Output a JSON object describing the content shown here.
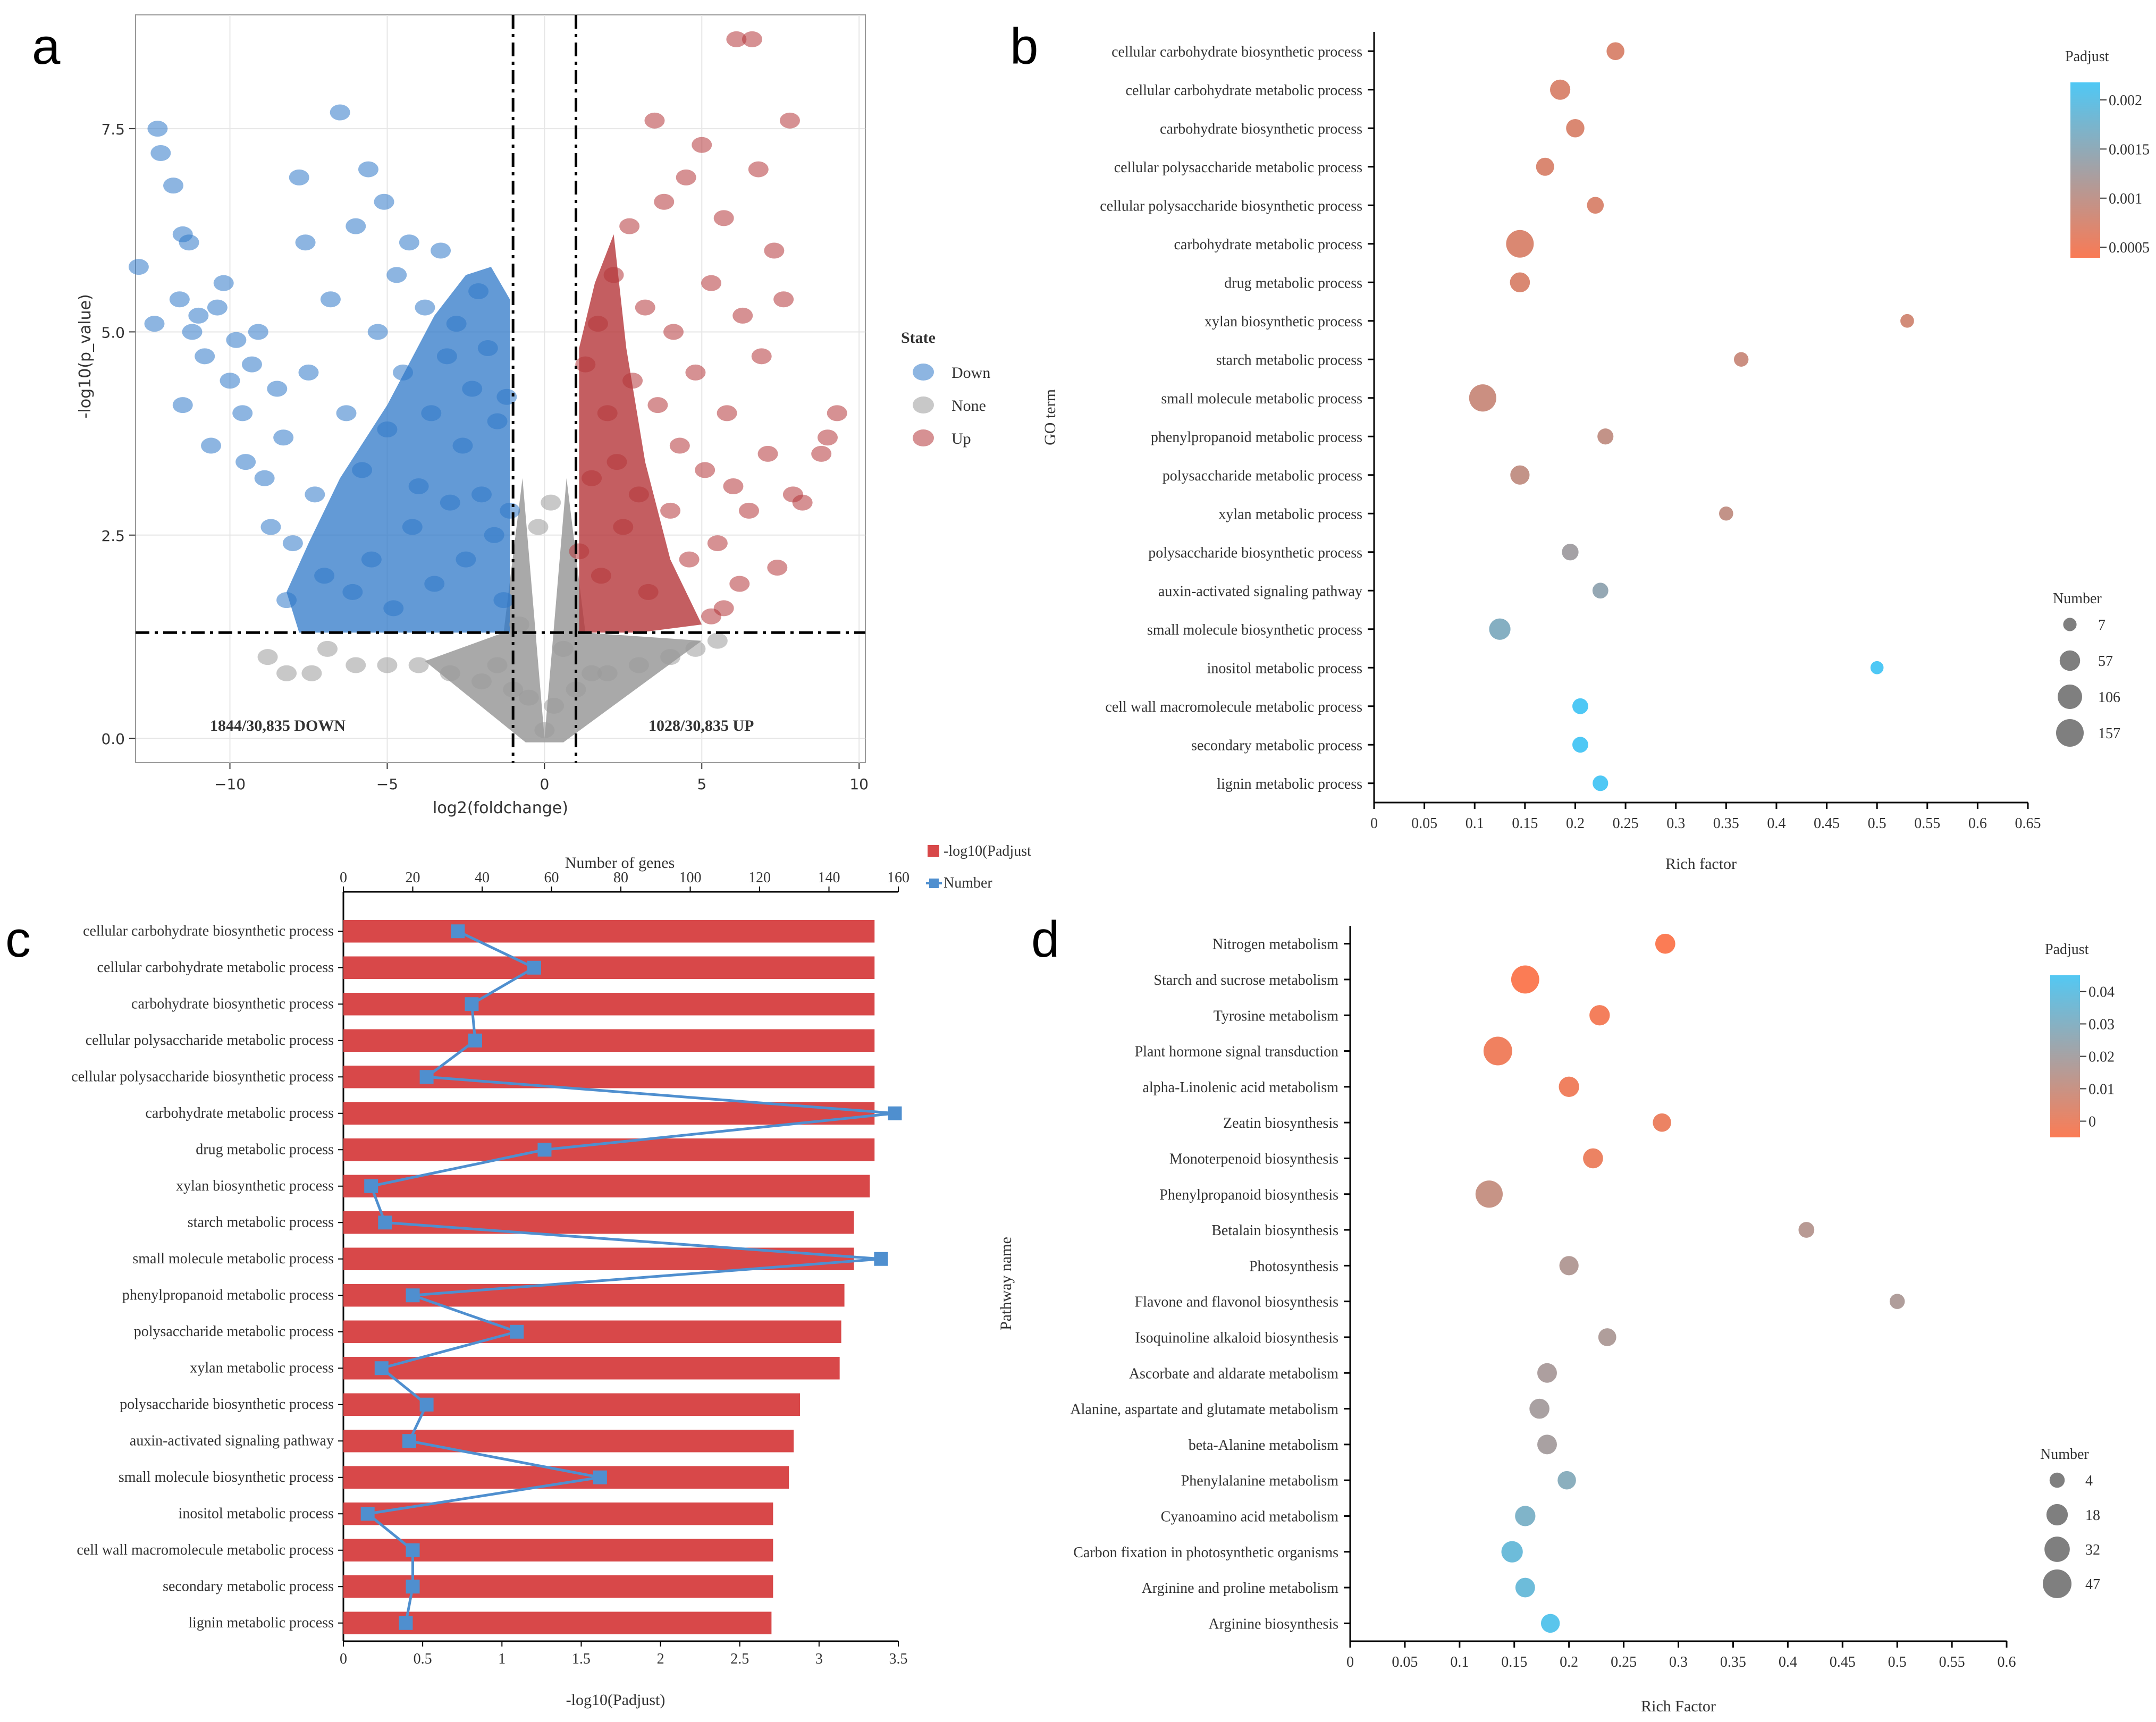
{
  "panels": {
    "a": "a",
    "b": "b",
    "c": "c",
    "d": "d"
  },
  "chart_data": [
    {
      "panel": "a",
      "type": "scatter",
      "xlabel": "log2(foldchange)",
      "ylabel": "-log10(p_value)",
      "xlim": [
        -13,
        10.2
      ],
      "ylim": [
        -0.3,
        8.9
      ],
      "xticks": [
        -10,
        -5,
        0,
        5,
        10
      ],
      "yticks": [
        0.0,
        2.5,
        5.0,
        7.5
      ],
      "xtick_labels": [
        "−10",
        "−5",
        "0",
        "5",
        "10"
      ],
      "ytick_labels": [
        "0.0",
        "2.5",
        "5.0",
        "7.5"
      ],
      "thresholds": {
        "x": [
          -1,
          1
        ],
        "y": 1.3
      },
      "grid": true,
      "legend": {
        "title": "State",
        "position": "right",
        "items": [
          "Down",
          "None",
          "Up"
        ]
      },
      "colors": {
        "Down": "#2f78c8",
        "None": "#9a9a9a",
        "Up": "#b5363a"
      },
      "annotations": {
        "down": "1844/30,835 DOWN",
        "up": "1028/30,835 UP"
      },
      "annotation_colors": {
        "down": "#2f6fc0",
        "up": "#a01f24"
      },
      "series": [
        {
          "name": "Down",
          "points": [
            [
              -12.9,
              5.8
            ],
            [
              -12.4,
              5.1
            ],
            [
              -12.3,
              7.5
            ],
            [
              -12.2,
              7.2
            ],
            [
              -11.8,
              6.8
            ],
            [
              -11.6,
              5.4
            ],
            [
              -11.5,
              6.2
            ],
            [
              -11.3,
              6.1
            ],
            [
              -11.2,
              5.0
            ],
            [
              -11.5,
              4.1
            ],
            [
              -11.0,
              5.2
            ],
            [
              -10.8,
              4.7
            ],
            [
              -10.6,
              3.6
            ],
            [
              -10.4,
              5.3
            ],
            [
              -10.2,
              5.6
            ],
            [
              -10.0,
              4.4
            ],
            [
              -9.8,
              4.9
            ],
            [
              -9.6,
              4.0
            ],
            [
              -9.5,
              3.4
            ],
            [
              -9.3,
              4.6
            ],
            [
              -9.1,
              5.0
            ],
            [
              -8.9,
              3.2
            ],
            [
              -8.7,
              2.6
            ],
            [
              -8.5,
              4.3
            ],
            [
              -8.3,
              3.7
            ],
            [
              -8.2,
              1.7
            ],
            [
              -8.0,
              2.4
            ],
            [
              -7.8,
              6.9
            ],
            [
              -7.6,
              6.1
            ],
            [
              -7.5,
              4.5
            ],
            [
              -7.3,
              3.0
            ],
            [
              -7.0,
              2.0
            ],
            [
              -6.8,
              5.4
            ],
            [
              -6.5,
              7.7
            ],
            [
              -6.3,
              4.0
            ],
            [
              -6.1,
              1.8
            ],
            [
              -6.0,
              6.3
            ],
            [
              -5.8,
              3.3
            ],
            [
              -5.6,
              7.0
            ],
            [
              -5.5,
              2.2
            ],
            [
              -5.3,
              5.0
            ],
            [
              -5.1,
              6.6
            ],
            [
              -5.0,
              3.8
            ],
            [
              -4.8,
              1.6
            ],
            [
              -4.7,
              5.7
            ],
            [
              -4.5,
              4.5
            ],
            [
              -4.3,
              6.1
            ],
            [
              -4.2,
              2.6
            ],
            [
              -4.0,
              3.1
            ],
            [
              -3.8,
              5.3
            ],
            [
              -3.6,
              4.0
            ],
            [
              -3.5,
              1.9
            ],
            [
              -3.3,
              6.0
            ],
            [
              -3.1,
              4.7
            ],
            [
              -3.0,
              2.9
            ],
            [
              -2.8,
              5.1
            ],
            [
              -2.6,
              3.6
            ],
            [
              -2.5,
              2.2
            ],
            [
              -2.3,
              4.3
            ],
            [
              -2.1,
              5.5
            ],
            [
              -2.0,
              3.0
            ],
            [
              -1.8,
              4.8
            ],
            [
              -1.6,
              2.5
            ],
            [
              -1.5,
              3.9
            ],
            [
              -1.3,
              1.7
            ],
            [
              -1.2,
              4.2
            ],
            [
              -1.1,
              2.8
            ]
          ]
        },
        {
          "name": "None",
          "points": [
            [
              -8.8,
              1.0
            ],
            [
              -8.2,
              0.8
            ],
            [
              -7.4,
              0.8
            ],
            [
              -6.9,
              1.1
            ],
            [
              -6.0,
              0.9
            ],
            [
              -5.0,
              0.9
            ],
            [
              -4.0,
              0.9
            ],
            [
              -3.0,
              0.8
            ],
            [
              -2.0,
              0.7
            ],
            [
              -1.5,
              0.9
            ],
            [
              -1.0,
              0.6
            ],
            [
              -0.8,
              1.4
            ],
            [
              -0.5,
              0.5
            ],
            [
              0.0,
              0.1
            ],
            [
              0.3,
              0.4
            ],
            [
              0.6,
              1.1
            ],
            [
              1.0,
              0.6
            ],
            [
              1.5,
              0.8
            ],
            [
              2.0,
              0.8
            ],
            [
              3.0,
              0.9
            ],
            [
              4.0,
              1.0
            ],
            [
              4.8,
              1.1
            ],
            [
              5.5,
              1.2
            ],
            [
              -0.2,
              2.6
            ],
            [
              0.2,
              2.9
            ]
          ]
        },
        {
          "name": "Up",
          "points": [
            [
              1.1,
              2.3
            ],
            [
              1.3,
              4.6
            ],
            [
              1.5,
              3.2
            ],
            [
              1.7,
              5.1
            ],
            [
              1.8,
              2.0
            ],
            [
              2.0,
              4.0
            ],
            [
              2.2,
              5.7
            ],
            [
              2.3,
              3.4
            ],
            [
              2.5,
              2.6
            ],
            [
              2.7,
              6.3
            ],
            [
              2.8,
              4.4
            ],
            [
              3.0,
              3.0
            ],
            [
              3.2,
              5.3
            ],
            [
              3.3,
              1.8
            ],
            [
              3.5,
              7.6
            ],
            [
              3.6,
              4.1
            ],
            [
              3.8,
              6.6
            ],
            [
              4.0,
              2.8
            ],
            [
              4.1,
              5.0
            ],
            [
              4.3,
              3.6
            ],
            [
              4.5,
              6.9
            ],
            [
              4.6,
              2.2
            ],
            [
              4.8,
              4.5
            ],
            [
              5.0,
              7.3
            ],
            [
              5.1,
              3.3
            ],
            [
              5.3,
              5.6
            ],
            [
              5.5,
              2.4
            ],
            [
              5.7,
              6.4
            ],
            [
              5.8,
              4.0
            ],
            [
              6.0,
              3.1
            ],
            [
              6.1,
              8.6
            ],
            [
              6.3,
              5.2
            ],
            [
              6.5,
              2.8
            ],
            [
              6.6,
              8.6
            ],
            [
              6.8,
              7.0
            ],
            [
              6.9,
              4.7
            ],
            [
              7.1,
              3.5
            ],
            [
              7.3,
              6.0
            ],
            [
              7.4,
              2.1
            ],
            [
              7.6,
              5.4
            ],
            [
              7.8,
              7.6
            ],
            [
              7.9,
              3.0
            ],
            [
              8.2,
              2.9
            ],
            [
              8.8,
              3.5
            ],
            [
              9.0,
              3.7
            ],
            [
              9.3,
              4.0
            ],
            [
              5.3,
              1.5
            ],
            [
              5.7,
              1.6
            ],
            [
              6.2,
              1.9
            ]
          ]
        }
      ]
    },
    {
      "panel": "b",
      "type": "scatter",
      "xlabel": "Rich factor",
      "ylabel": "GO term",
      "xlim": [
        0,
        0.65
      ],
      "xticks": [
        0,
        0.05,
        0.1,
        0.15,
        0.2,
        0.25,
        0.3,
        0.35,
        0.4,
        0.45,
        0.5,
        0.55,
        0.6,
        0.65
      ],
      "color_legend": {
        "title": "Padjust",
        "ticks": [
          "0.002",
          "0.0015",
          "0.001",
          "0.0005"
        ],
        "low_color": "#f97a55",
        "high_color": "#4fc8f5",
        "position": "top-right"
      },
      "size_legend": {
        "title": "Number",
        "values": [
          7,
          57,
          106,
          157
        ],
        "position": "right"
      },
      "categories": [
        "cellular carbohydrate biosynthetic process",
        "cellular carbohydrate metabolic process",
        "carbohydrate biosynthetic process",
        "cellular polysaccharide metabolic process",
        "cellular polysaccharide biosynthetic process",
        "carbohydrate metabolic process",
        "drug metabolic process",
        "xylan biosynthetic process",
        "starch metabolic process",
        "small molecule metabolic process",
        "phenylpropanoid metabolic process",
        "polysaccharide metabolic process",
        "xylan metabolic process",
        "polysaccharide biosynthetic process",
        "auxin-activated signaling pathway",
        "small molecule biosynthetic process",
        "inositol metabolic process",
        "cell wall macromolecule metabolic process",
        "secondary metabolic process",
        "lignin metabolic process"
      ],
      "rich_factor": [
        0.24,
        0.185,
        0.2,
        0.17,
        0.22,
        0.145,
        0.145,
        0.53,
        0.365,
        0.108,
        0.23,
        0.145,
        0.35,
        0.195,
        0.225,
        0.125,
        0.5,
        0.205,
        0.205,
        0.225
      ],
      "number": [
        33,
        55,
        37,
        35,
        25,
        157,
        52,
        8,
        12,
        150,
        20,
        45,
        10,
        24,
        19,
        67,
        6,
        19,
        19,
        17
      ],
      "padjust": [
        0.0004,
        0.0004,
        0.0004,
        0.0004,
        0.0004,
        0.0004,
        0.0004,
        0.0005,
        0.0006,
        0.0006,
        0.0007,
        0.0007,
        0.0007,
        0.0011,
        0.0013,
        0.0015,
        0.0022,
        0.0022,
        0.0022,
        0.0022
      ]
    },
    {
      "panel": "c",
      "type": "bar",
      "orientation": "horizontal",
      "xlabel": "-log10(Padjust)",
      "x2label": "Number of genes",
      "xlim": [
        0,
        3.5
      ],
      "xticks": [
        0,
        0.5,
        1,
        1.5,
        2,
        2.5,
        3,
        3.5
      ],
      "x2lim": [
        0,
        160
      ],
      "x2ticks": [
        0,
        20,
        40,
        60,
        80,
        100,
        120,
        140,
        160
      ],
      "legend": {
        "items": [
          "-log10(Padjust",
          "Number"
        ],
        "position": "top-right"
      },
      "colors": {
        "bar": "#d84849",
        "line": "#4f8fcf"
      },
      "categories": [
        "cellular carbohydrate biosynthetic process",
        "cellular carbohydrate metabolic process",
        "carbohydrate biosynthetic process",
        "cellular polysaccharide metabolic process",
        "cellular polysaccharide biosynthetic process",
        "carbohydrate metabolic process",
        "drug metabolic process",
        "xylan biosynthetic process",
        "starch metabolic process",
        "small molecule metabolic process",
        "phenylpropanoid metabolic process",
        "polysaccharide metabolic process",
        "xylan metabolic process",
        "polysaccharide biosynthetic process",
        "auxin-activated signaling pathway",
        "small molecule biosynthetic process",
        "inositol metabolic process",
        "cell wall macromolecule metabolic process",
        "secondary metabolic process",
        "lignin metabolic process"
      ],
      "series": [
        {
          "name": "-log10(Padjust",
          "values": [
            3.35,
            3.35,
            3.35,
            3.35,
            3.35,
            3.35,
            3.35,
            3.32,
            3.22,
            3.22,
            3.16,
            3.14,
            3.13,
            2.88,
            2.84,
            2.81,
            2.71,
            2.71,
            2.71,
            2.7
          ]
        },
        {
          "name": "Number",
          "values": [
            33,
            55,
            37,
            38,
            24,
            159,
            58,
            8,
            12,
            155,
            20,
            50,
            11,
            24,
            19,
            74,
            7,
            20,
            20,
            18
          ]
        }
      ]
    },
    {
      "panel": "d",
      "type": "scatter",
      "xlabel": "Rich Factor",
      "ylabel": "Pathway name",
      "xlim": [
        0,
        0.6
      ],
      "xticks": [
        0,
        0.05,
        0.1,
        0.15,
        0.2,
        0.25,
        0.3,
        0.35,
        0.4,
        0.45,
        0.5,
        0.55,
        0.6
      ],
      "color_legend": {
        "title": "Padjust",
        "ticks": [
          "0.04",
          "0.03",
          "0.02",
          "0.01",
          "0"
        ],
        "low_color": "#fb7c55",
        "high_color": "#53c8f3",
        "position": "top-right"
      },
      "size_legend": {
        "title": "Number",
        "values": [
          4,
          18,
          32,
          47
        ],
        "position": "right"
      },
      "categories": [
        "Nitrogen metabolism",
        "Starch and sucrose metabolism",
        "Tyrosine metabolism",
        "Plant hormone signal transduction",
        "alpha-Linolenic acid metabolism",
        "Zeatin biosynthesis",
        "Monoterpenoid biosynthesis",
        "Phenylpropanoid biosynthesis",
        "Betalain biosynthesis",
        "Photosynthesis",
        "Flavone and flavonol biosynthesis",
        "Isoquinoline alkaloid biosynthesis",
        "Ascorbate and aldarate metabolism",
        "Alanine, aspartate and glutamate metabolism",
        "beta-Alanine metabolism",
        "Phenylalanine metabolism",
        "Cyanoamino acid metabolism",
        "Carbon fixation in photosynthetic organisms",
        "Arginine and proline metabolism",
        "Arginine biosynthesis"
      ],
      "rich_factor": [
        0.288,
        0.16,
        0.228,
        0.135,
        0.2,
        0.285,
        0.222,
        0.127,
        0.417,
        0.2,
        0.5,
        0.235,
        0.18,
        0.173,
        0.18,
        0.198,
        0.16,
        0.148,
        0.16,
        0.183
      ],
      "number": [
        14,
        44,
        15,
        47,
        15,
        10,
        14,
        40,
        5,
        12,
        4,
        9,
        13,
        14,
        13,
        10,
        15,
        18,
        13,
        11
      ],
      "padjust": [
        0.0,
        0.0,
        0.002,
        0.003,
        0.003,
        0.004,
        0.004,
        0.014,
        0.018,
        0.019,
        0.02,
        0.02,
        0.021,
        0.022,
        0.022,
        0.03,
        0.033,
        0.038,
        0.038,
        0.043
      ]
    }
  ]
}
